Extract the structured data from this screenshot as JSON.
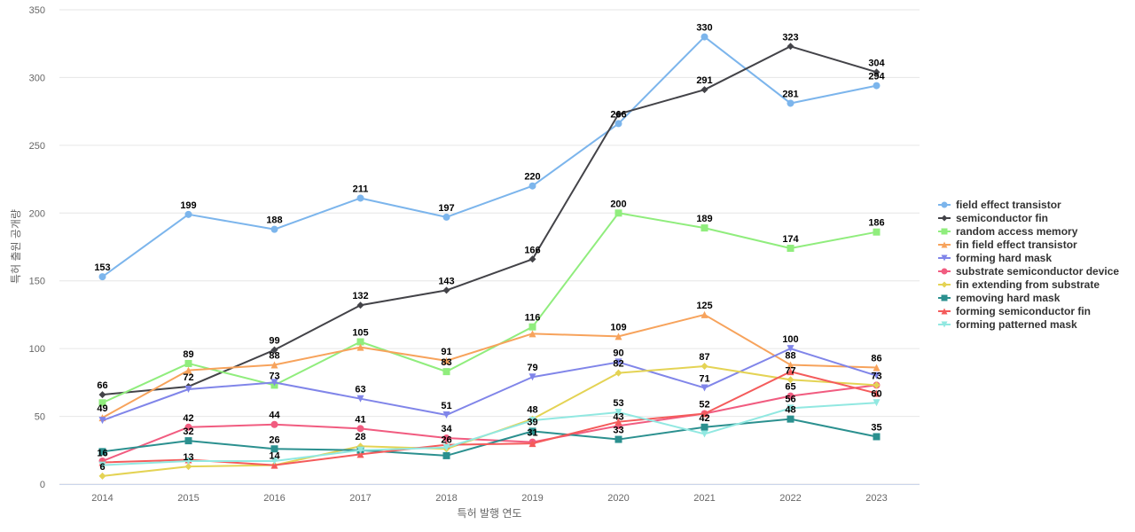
{
  "chart_data": {
    "type": "line",
    "title": "",
    "xlabel": "특허 발행 연도",
    "ylabel": "특허 출원 공개량",
    "categories": [
      "2014",
      "2015",
      "2016",
      "2017",
      "2018",
      "2019",
      "2020",
      "2021",
      "2022",
      "2023"
    ],
    "ylim": [
      0,
      350
    ],
    "yticks": [
      0,
      50,
      100,
      150,
      200,
      250,
      300,
      350
    ],
    "grid": true,
    "legend_position": "right",
    "series": [
      {
        "name": "field effect transistor",
        "color": "#7cb5ec",
        "marker": "circle",
        "values": [
          153,
          199,
          188,
          211,
          197,
          220,
          266,
          330,
          281,
          294
        ]
      },
      {
        "name": "semiconductor fin",
        "color": "#434348",
        "marker": "diamond",
        "values": [
          66,
          72,
          99,
          132,
          143,
          166,
          273,
          291,
          323,
          304
        ]
      },
      {
        "name": "random access memory",
        "color": "#90ed7d",
        "marker": "square",
        "values": [
          60,
          89,
          73,
          105,
          83,
          116,
          200,
          189,
          174,
          186
        ]
      },
      {
        "name": "fin field effect transistor",
        "color": "#f7a35c",
        "marker": "triangle",
        "values": [
          49,
          84,
          88,
          101,
          91,
          111,
          109,
          125,
          88,
          86
        ]
      },
      {
        "name": "forming hard mask",
        "color": "#8085e9",
        "marker": "triangle-down",
        "values": [
          47,
          70,
          75,
          63,
          51,
          79,
          90,
          71,
          100,
          80
        ]
      },
      {
        "name": "substrate semiconductor device",
        "color": "#f15c80",
        "marker": "circle",
        "values": [
          17,
          42,
          44,
          41,
          34,
          31,
          43,
          52,
          65,
          73
        ]
      },
      {
        "name": "fin extending from substrate",
        "color": "#e4d354",
        "marker": "diamond",
        "values": [
          6,
          13,
          14,
          28,
          26,
          48,
          82,
          87,
          77,
          73
        ]
      },
      {
        "name": "removing hard mask",
        "color": "#2b908f",
        "marker": "square",
        "values": [
          24,
          32,
          26,
          25,
          21,
          39,
          33,
          42,
          48,
          35
        ]
      },
      {
        "name": "forming semiconductor fin",
        "color": "#f45b5b",
        "marker": "triangle",
        "values": [
          16,
          18,
          14,
          22,
          29,
          30,
          46,
          52,
          83,
          67
        ]
      },
      {
        "name": "forming patterned mask",
        "color": "#91e8e1",
        "marker": "triangle-down",
        "values": [
          14,
          17,
          17,
          25,
          27,
          47,
          53,
          37,
          56,
          60
        ]
      }
    ],
    "labels": [
      {
        "text": "153",
        "category": "2014",
        "value": 153
      },
      {
        "text": "199",
        "category": "2015",
        "value": 199
      },
      {
        "text": "188",
        "category": "2016",
        "value": 188
      },
      {
        "text": "211",
        "category": "2017",
        "value": 211
      },
      {
        "text": "197",
        "category": "2018",
        "value": 197
      },
      {
        "text": "220",
        "category": "2019",
        "value": 220
      },
      {
        "text": "266",
        "category": "2020",
        "value": 266
      },
      {
        "text": "330",
        "category": "2021",
        "value": 330
      },
      {
        "text": "281",
        "category": "2022",
        "value": 281
      },
      {
        "text": "294",
        "category": "2023",
        "value": 294
      },
      {
        "text": "66",
        "category": "2014",
        "value": 66
      },
      {
        "text": "99",
        "category": "2016",
        "value": 99
      },
      {
        "text": "132",
        "category": "2017",
        "value": 132
      },
      {
        "text": "143",
        "category": "2018",
        "value": 143
      },
      {
        "text": "166",
        "category": "2019",
        "value": 166
      },
      {
        "text": "291",
        "category": "2021",
        "value": 291
      },
      {
        "text": "323",
        "category": "2022",
        "value": 323
      },
      {
        "text": "304",
        "category": "2023",
        "value": 304
      },
      {
        "text": "89",
        "category": "2015",
        "value": 89
      },
      {
        "text": "88",
        "category": "2016",
        "value": 88
      },
      {
        "text": "105",
        "category": "2017",
        "value": 105
      },
      {
        "text": "91",
        "category": "2018",
        "value": 91
      },
      {
        "text": "83",
        "category": "2018",
        "value": 83
      },
      {
        "text": "116",
        "category": "2019",
        "value": 116
      },
      {
        "text": "200",
        "category": "2020",
        "value": 200
      },
      {
        "text": "189",
        "category": "2021",
        "value": 189
      },
      {
        "text": "174",
        "category": "2022",
        "value": 174
      },
      {
        "text": "186",
        "category": "2023",
        "value": 186
      },
      {
        "text": "109",
        "category": "2020",
        "value": 109
      },
      {
        "text": "125",
        "category": "2021",
        "value": 125
      },
      {
        "text": "88",
        "category": "2022",
        "value": 88
      },
      {
        "text": "86",
        "category": "2023",
        "value": 86
      },
      {
        "text": "49",
        "category": "2014",
        "value": 49
      },
      {
        "text": "72",
        "category": "2015",
        "value": 72
      },
      {
        "text": "73",
        "category": "2016",
        "value": 73
      },
      {
        "text": "63",
        "category": "2017",
        "value": 63
      },
      {
        "text": "51",
        "category": "2018",
        "value": 51
      },
      {
        "text": "79",
        "category": "2019",
        "value": 79
      },
      {
        "text": "90",
        "category": "2020",
        "value": 90
      },
      {
        "text": "82",
        "category": "2020",
        "value": 82
      },
      {
        "text": "87",
        "category": "2021",
        "value": 87
      },
      {
        "text": "71",
        "category": "2021",
        "value": 71
      },
      {
        "text": "100",
        "category": "2022",
        "value": 100
      },
      {
        "text": "77",
        "category": "2022",
        "value": 77
      },
      {
        "text": "73",
        "category": "2023",
        "value": 73
      },
      {
        "text": "42",
        "category": "2015",
        "value": 42
      },
      {
        "text": "44",
        "category": "2016",
        "value": 44
      },
      {
        "text": "41",
        "category": "2017",
        "value": 41
      },
      {
        "text": "34",
        "category": "2018",
        "value": 34
      },
      {
        "text": "48",
        "category": "2019",
        "value": 48
      },
      {
        "text": "53",
        "category": "2020",
        "value": 53
      },
      {
        "text": "52",
        "category": "2021",
        "value": 52
      },
      {
        "text": "65",
        "category": "2022",
        "value": 65
      },
      {
        "text": "60",
        "category": "2023",
        "value": 60
      },
      {
        "text": "16",
        "category": "2014",
        "value": 16
      },
      {
        "text": "6",
        "category": "2014",
        "value": 6
      },
      {
        "text": "32",
        "category": "2015",
        "value": 32
      },
      {
        "text": "13",
        "category": "2015",
        "value": 13
      },
      {
        "text": "26",
        "category": "2016",
        "value": 26
      },
      {
        "text": "14",
        "category": "2016",
        "value": 14
      },
      {
        "text": "28",
        "category": "2017",
        "value": 28
      },
      {
        "text": "26",
        "category": "2018",
        "value": 26
      },
      {
        "text": "39",
        "category": "2019",
        "value": 39
      },
      {
        "text": "31",
        "category": "2019",
        "value": 31
      },
      {
        "text": "43",
        "category": "2020",
        "value": 43
      },
      {
        "text": "33",
        "category": "2020",
        "value": 33
      },
      {
        "text": "42",
        "category": "2021",
        "value": 42
      },
      {
        "text": "56",
        "category": "2022",
        "value": 56
      },
      {
        "text": "48",
        "category": "2022",
        "value": 48
      },
      {
        "text": "35",
        "category": "2023",
        "value": 35
      }
    ]
  }
}
